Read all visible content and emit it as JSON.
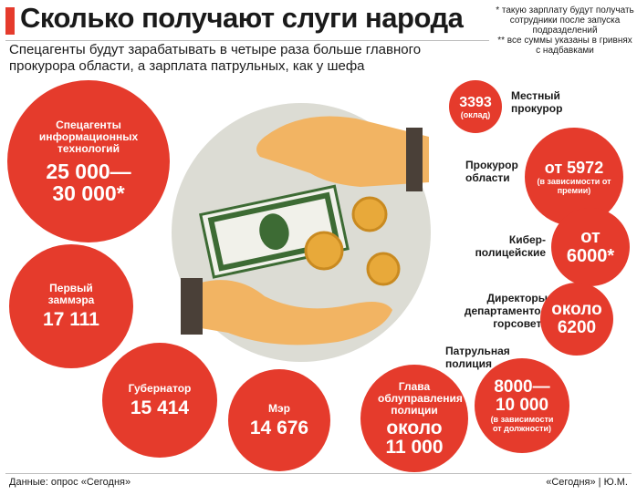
{
  "header": {
    "title": "Сколько получают слуги народа",
    "subtitle": "Спецагенты будут зарабатывать в четыре раза больше главного прокурора области, а зарплата патрульных, как у шефа"
  },
  "notes": {
    "note1": "* такую зарплату будут получать сотрудники после запуска подразделений",
    "note2": "** все суммы указаны в гривнях с надбавками"
  },
  "left_circles": [
    {
      "label": "Спецагенты информационных технологий",
      "value_1": "25 000—",
      "value_2": "30 000*"
    },
    {
      "label": "Первый заммэра",
      "value": "17 111"
    },
    {
      "label": "Губернатор",
      "value": "15 414"
    },
    {
      "label": "Мэр",
      "value": "14 676"
    },
    {
      "label": "Глава облуправления полиции",
      "value_1": "около",
      "value_2": "11 000"
    }
  ],
  "right_items": [
    {
      "label": "Местный прокурор",
      "value": "3393",
      "sub": "(оклад)"
    },
    {
      "label": "Прокурор области",
      "value": "от 5972",
      "sub": "(в зависимости от премии)"
    },
    {
      "label": "Кибер-полицейские",
      "value_1": "от",
      "value_2": "6000*"
    },
    {
      "label": "Директоры департаментов горсовета",
      "value_1": "около",
      "value_2": "6200"
    },
    {
      "label": "Патрульная полиция",
      "value_1": "8000—",
      "value_2": "10 000",
      "sub": "(в зависимости от должности)"
    }
  ],
  "footer": {
    "source": "Данные: опрос «Сегодня»",
    "credit": "«Сегодня» | Ю.М."
  },
  "colors": {
    "accent": "#e53b2c",
    "illustration_bg": "#dcdcd4",
    "hand": "#f2b463",
    "money": "#3d6b34"
  }
}
